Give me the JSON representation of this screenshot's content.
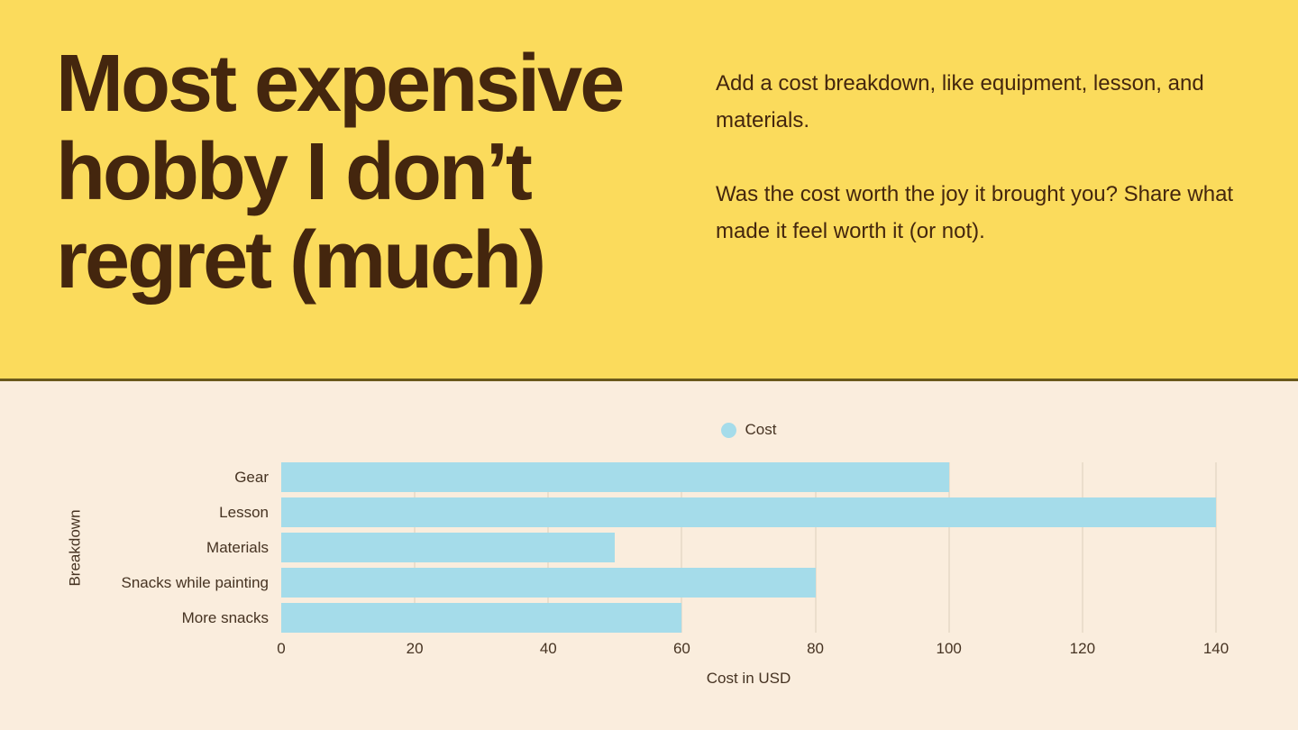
{
  "header": {
    "title": "Most expensive hobby I don’t regret (much)",
    "paragraph1": "Add a cost breakdown, like equipment, lesson, and materials.",
    "paragraph2": "Was the cost worth the joy it brought you? Share what made it feel worth it (or not)."
  },
  "colors": {
    "header_background": "#FBDB5C",
    "chart_background": "#FAEDDD",
    "text_brown": "#44260E",
    "chart_text": "#463322",
    "bar_fill": "#A5DCEA",
    "divider": "#6B591B",
    "gridline": "#EBDECC"
  },
  "chart_data": {
    "type": "bar",
    "orientation": "horizontal",
    "series_name": "Cost",
    "series_color": "#A5DCEA",
    "categories": [
      "Gear",
      "Lesson",
      "Materials",
      "Snacks while painting",
      "More snacks"
    ],
    "values": [
      100,
      140,
      50,
      80,
      60
    ],
    "xlabel": "Cost in USD",
    "ylabel": "Breakdown",
    "xlim": [
      0,
      140
    ],
    "xticks": [
      0,
      20,
      40,
      60,
      80,
      100,
      120,
      140
    ],
    "grid": true,
    "legend_position": "top-center"
  }
}
